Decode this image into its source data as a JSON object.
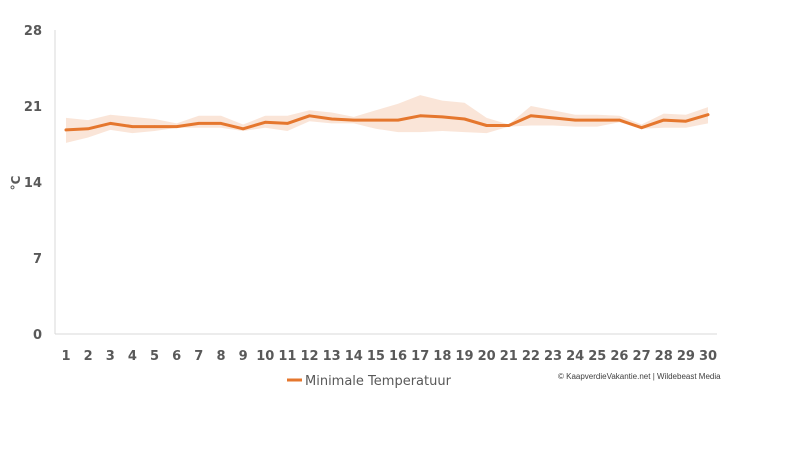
{
  "chart_data": {
    "type": "line",
    "ylabel": "°C",
    "ylim": [
      0,
      28
    ],
    "yticks": [
      "0",
      "7",
      "14",
      "21",
      "28"
    ],
    "x": [
      1,
      2,
      3,
      4,
      5,
      6,
      7,
      8,
      9,
      10,
      11,
      12,
      13,
      14,
      15,
      16,
      17,
      18,
      19,
      20,
      21,
      22,
      23,
      24,
      25,
      26,
      27,
      28,
      29,
      30
    ],
    "series": [
      {
        "name": "Minimale Temperatuur",
        "values": [
          18.8,
          18.9,
          19.4,
          19.1,
          19.1,
          19.1,
          19.4,
          19.4,
          18.9,
          19.5,
          19.4,
          20.1,
          19.8,
          19.7,
          19.7,
          19.7,
          20.1,
          20.0,
          19.8,
          19.2,
          19.2,
          20.1,
          19.9,
          19.7,
          19.7,
          19.7,
          19.0,
          19.7,
          19.6,
          20.2
        ],
        "range_low": [
          17.6,
          18.1,
          18.8,
          18.5,
          18.7,
          19.0,
          19.0,
          19.0,
          18.7,
          19.0,
          18.7,
          19.6,
          19.4,
          19.4,
          18.9,
          18.6,
          18.6,
          18.7,
          18.6,
          18.5,
          19.1,
          19.2,
          19.2,
          19.1,
          19.1,
          19.5,
          18.9,
          19.0,
          19.0,
          19.4
        ],
        "range_high": [
          19.9,
          19.7,
          20.2,
          20.0,
          19.8,
          19.4,
          20.1,
          20.1,
          19.3,
          20.1,
          20.1,
          20.6,
          20.4,
          20.0,
          20.6,
          21.2,
          22.0,
          21.5,
          21.3,
          19.9,
          19.3,
          21.0,
          20.6,
          20.2,
          20.2,
          20.1,
          19.3,
          20.3,
          20.2,
          20.9
        ]
      }
    ],
    "colors": {
      "line": "#E5772E",
      "band": "#F8DCCB",
      "axis": "#D9D9D9",
      "text": "#595959"
    },
    "legend": "bottom"
  },
  "credit": "© KaapverdieVakantie.net | Wildebeast Media"
}
